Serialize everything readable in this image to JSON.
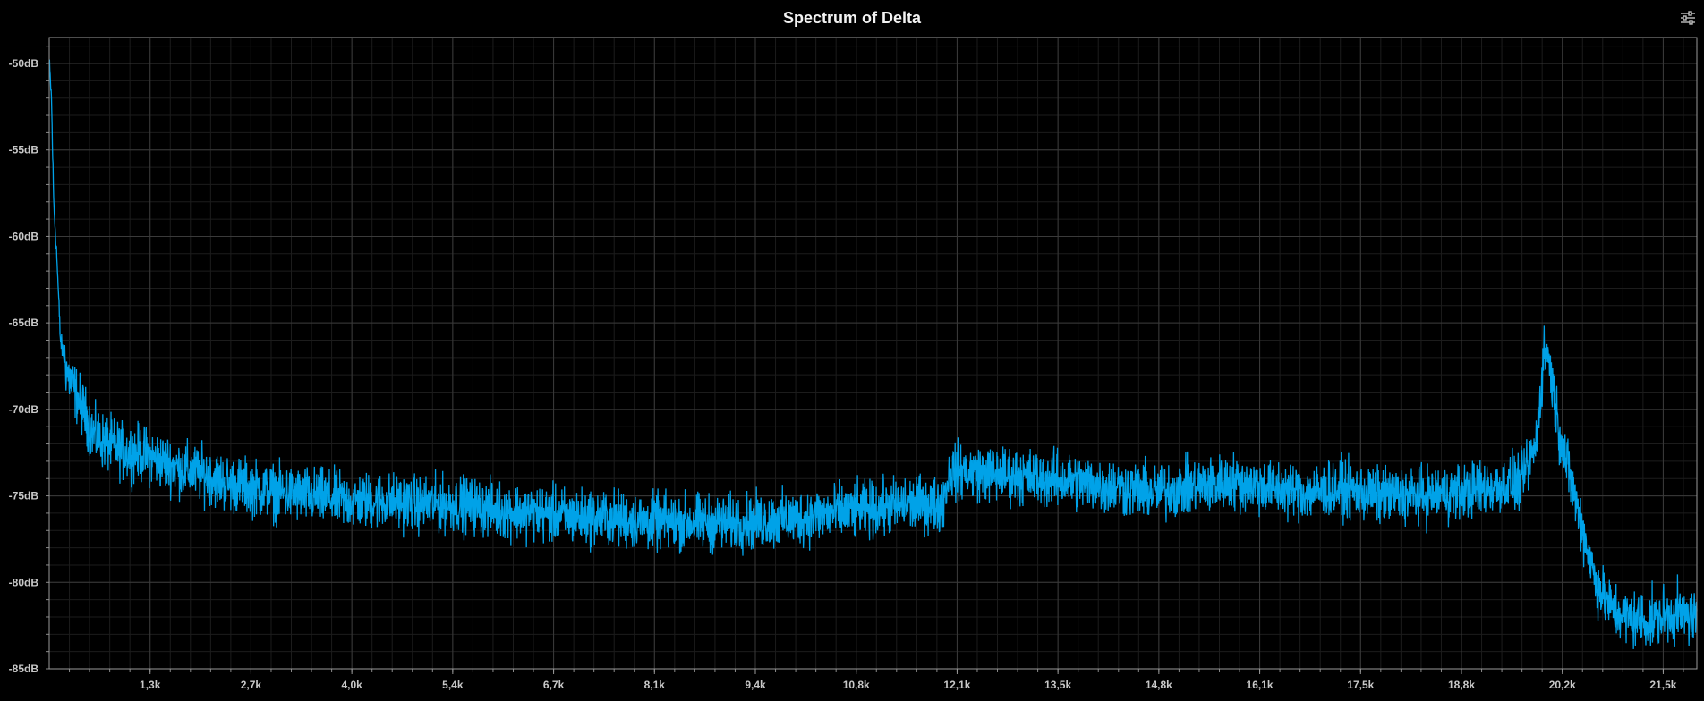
{
  "chart_data": {
    "type": "line",
    "title": "Spectrum of Delta",
    "xlabel": "",
    "ylabel": "",
    "xlim": [
      0,
      22050
    ],
    "ylim": [
      -85,
      -48.5
    ],
    "y_ticks": [
      -50,
      -55,
      -60,
      -65,
      -70,
      -75,
      -80,
      -85
    ],
    "y_tick_labels": [
      "-50dB",
      "-55dB",
      "-60dB",
      "-65dB",
      "-70dB",
      "-75dB",
      "-80dB",
      "-85dB"
    ],
    "x_ticks": [
      1350,
      2700,
      4050,
      5400,
      6750,
      8100,
      9450,
      10800,
      12150,
      13500,
      14850,
      16200,
      17550,
      18900,
      20250,
      21600
    ],
    "x_tick_labels": [
      "1,3k",
      "2,7k",
      "4,0k",
      "5,4k",
      "6,7k",
      "8,1k",
      "9,4k",
      "10,8k",
      "12,1k",
      "13,5k",
      "14,8k",
      "16,1k",
      "17,5k",
      "18,8k",
      "20,2k",
      "21,5k"
    ],
    "grid": true,
    "line_color": "#00a2e8",
    "series": [
      {
        "x": [
          0,
          30,
          60,
          100,
          150,
          250,
          400,
          600,
          800,
          1000,
          1200,
          1500,
          1800,
          2100,
          2400,
          2700,
          3000,
          3500,
          4000,
          4500,
          5000,
          5500,
          6000,
          6500,
          7000,
          7500,
          8000,
          8500,
          9000,
          9500,
          10000,
          10500,
          11000,
          11500,
          11950,
          12050,
          12300,
          12800,
          13300,
          13800,
          14300,
          14800,
          15300,
          15800,
          16300,
          16800,
          17300,
          17800,
          18300,
          18800,
          19300,
          19700,
          19900,
          20000,
          20050,
          20100,
          20200,
          20300,
          20500,
          20700,
          20900,
          21100,
          21400,
          21700,
          22050
        ],
        "y": [
          -50,
          -52,
          -58,
          -61,
          -66,
          -68,
          -69.5,
          -71.5,
          -72,
          -72.5,
          -72.5,
          -73,
          -73.5,
          -73.8,
          -74.3,
          -74.5,
          -74.8,
          -75,
          -75.3,
          -75.3,
          -75.5,
          -75.5,
          -75.8,
          -76,
          -76.2,
          -76.3,
          -76.5,
          -76.5,
          -76.6,
          -76.5,
          -76.3,
          -76,
          -75.8,
          -75.5,
          -75.5,
          -73.6,
          -73.6,
          -73.8,
          -74,
          -74.2,
          -74.5,
          -74.8,
          -74.5,
          -74.2,
          -74.5,
          -74.8,
          -74.6,
          -75,
          -75,
          -74.8,
          -74.5,
          -74.2,
          -72,
          -67,
          -66.5,
          -68,
          -71,
          -73,
          -76.5,
          -80,
          -81.5,
          -82,
          -82.3,
          -81.8,
          -82
        ]
      }
    ]
  },
  "ui": {
    "settings_icon": "sliders-icon"
  }
}
